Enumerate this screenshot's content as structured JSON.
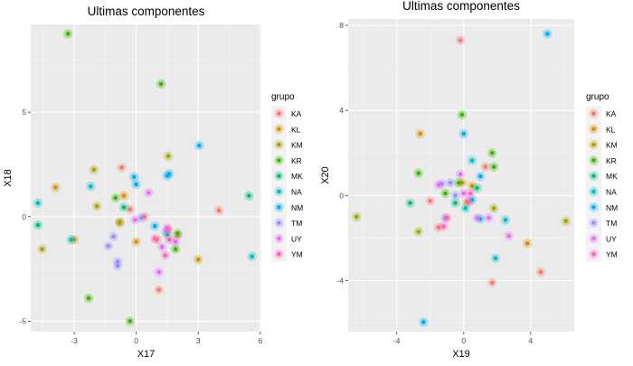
{
  "chart_data": [
    {
      "type": "scatter",
      "title": "Ultimas componentes",
      "xlabel": "X17",
      "ylabel": "X18",
      "xlim": [
        -5.1,
        6.05
      ],
      "ylim": [
        -5.5,
        9.2
      ],
      "xticks": [
        -3,
        0,
        3,
        6
      ],
      "yticks": [
        -5,
        0,
        5
      ],
      "grid": true,
      "legend_title": "grupo",
      "legend_position": "right",
      "series": [
        {
          "name": "KA",
          "color": "#F8766D",
          "points": [
            [
              -0.7,
              2.35
            ],
            [
              -0.3,
              0.35
            ],
            [
              0.4,
              0.0
            ],
            [
              1.0,
              -1.1
            ],
            [
              2.0,
              -0.9
            ],
            [
              4.0,
              0.3
            ],
            [
              1.1,
              -3.5
            ]
          ]
        },
        {
          "name": "KL",
          "color": "#D89000",
          "points": [
            [
              -3.9,
              1.4
            ],
            [
              -0.8,
              -0.3
            ],
            [
              -0.6,
              1.0
            ],
            [
              0.0,
              -1.2
            ],
            [
              3.0,
              -2.05
            ],
            [
              -3.0,
              -1.1
            ]
          ]
        },
        {
          "name": "KM",
          "color": "#A3A500",
          "points": [
            [
              -2.05,
              2.25
            ],
            [
              -1.9,
              0.5
            ],
            [
              1.55,
              2.9
            ],
            [
              -4.55,
              -1.55
            ],
            [
              -0.8,
              -0.25
            ]
          ]
        },
        {
          "name": "KR",
          "color": "#39B600",
          "points": [
            [
              -3.3,
              8.75
            ],
            [
              1.2,
              6.35
            ],
            [
              -2.3,
              -3.9
            ],
            [
              -0.3,
              -5.0
            ],
            [
              -1.0,
              0.9
            ],
            [
              2.0,
              -0.8
            ],
            [
              1.9,
              -1.55
            ]
          ]
        },
        {
          "name": "MK",
          "color": "#00BF7D",
          "points": [
            [
              -4.75,
              -0.4
            ],
            [
              5.45,
              1.0
            ],
            [
              1.5,
              -0.85
            ],
            [
              -0.6,
              0.45
            ]
          ]
        },
        {
          "name": "NA",
          "color": "#00BFC4",
          "points": [
            [
              -4.75,
              0.65
            ],
            [
              -2.2,
              1.45
            ],
            [
              5.6,
              -1.9
            ],
            [
              -3.15,
              -1.1
            ]
          ]
        },
        {
          "name": "NM",
          "color": "#00B0F6",
          "points": [
            [
              -0.1,
              1.9
            ],
            [
              0.0,
              1.55
            ],
            [
              1.5,
              1.95
            ],
            [
              1.6,
              2.05
            ],
            [
              3.05,
              3.4
            ],
            [
              0.9,
              -0.45
            ]
          ]
        },
        {
          "name": "TM",
          "color": "#9590FF",
          "points": [
            [
              -1.35,
              -1.4
            ],
            [
              -1.1,
              -0.95
            ],
            [
              -0.9,
              -2.35
            ],
            [
              -0.9,
              -2.15
            ],
            [
              1.45,
              -0.7
            ],
            [
              0.25,
              -0.05
            ]
          ]
        },
        {
          "name": "UY",
          "color": "#E76BF3",
          "points": [
            [
              0.6,
              1.15
            ],
            [
              -0.05,
              -0.15
            ],
            [
              1.1,
              -2.65
            ],
            [
              1.25,
              -1.45
            ],
            [
              1.9,
              -1.2
            ],
            [
              1.5,
              -0.55
            ]
          ]
        },
        {
          "name": "YM",
          "color": "#FF62BC",
          "points": [
            [
              1.4,
              -1.85
            ],
            [
              1.55,
              -0.6
            ],
            [
              1.6,
              -1.1
            ],
            [
              0.9,
              -1.05
            ]
          ]
        }
      ]
    },
    {
      "type": "scatter",
      "title": "Ultimas componentes",
      "xlabel": "X19",
      "ylabel": "X20",
      "xlim": [
        -6.9,
        6.6
      ],
      "ylim": [
        -6.4,
        8.3
      ],
      "xticks": [
        -4,
        0,
        4
      ],
      "yticks": [
        -4,
        0,
        4,
        8
      ],
      "grid": true,
      "legend_title": "grupo",
      "legend_position": "right",
      "series": [
        {
          "name": "KA",
          "color": "#F8766D",
          "points": [
            [
              -0.2,
              7.3
            ],
            [
              -2.0,
              -0.25
            ],
            [
              -1.5,
              -1.5
            ],
            [
              4.6,
              -3.6
            ],
            [
              1.3,
              1.35
            ],
            [
              1.7,
              -4.1
            ]
          ]
        },
        {
          "name": "KL",
          "color": "#D89000",
          "points": [
            [
              -2.6,
              2.9
            ],
            [
              3.8,
              -2.25
            ],
            [
              0.5,
              0.45
            ],
            [
              0.2,
              -0.3
            ],
            [
              -0.1,
              0.6
            ]
          ]
        },
        {
          "name": "KM",
          "color": "#A3A500",
          "points": [
            [
              -6.4,
              -1.0
            ],
            [
              6.1,
              -1.2
            ],
            [
              -2.7,
              -1.7
            ],
            [
              1.8,
              -0.6
            ]
          ]
        },
        {
          "name": "KR",
          "color": "#39B600",
          "points": [
            [
              -0.1,
              3.8
            ],
            [
              -2.7,
              1.05
            ],
            [
              1.7,
              2.0
            ],
            [
              1.8,
              1.35
            ],
            [
              -0.3,
              0.6
            ],
            [
              -1.1,
              0.1
            ]
          ]
        },
        {
          "name": "MK",
          "color": "#00BF7D",
          "points": [
            [
              -3.2,
              -0.35
            ],
            [
              -0.5,
              -0.35
            ],
            [
              0.8,
              0.35
            ]
          ]
        },
        {
          "name": "NA",
          "color": "#00BFC4",
          "points": [
            [
              0.5,
              1.65
            ],
            [
              2.5,
              -1.15
            ],
            [
              1.9,
              -2.95
            ],
            [
              0.1,
              -0.6
            ]
          ]
        },
        {
          "name": "NM",
          "color": "#00B0F6",
          "points": [
            [
              5.0,
              7.6
            ],
            [
              0.0,
              2.9
            ],
            [
              -2.4,
              -5.95
            ],
            [
              1.0,
              -1.1
            ],
            [
              0.5,
              -0.2
            ],
            [
              1.0,
              0.9
            ]
          ]
        },
        {
          "name": "TM",
          "color": "#9590FF",
          "points": [
            [
              -1.3,
              0.55
            ],
            [
              -0.8,
              0.6
            ],
            [
              -1.1,
              -1.05
            ],
            [
              -0.5,
              0.0
            ]
          ]
        },
        {
          "name": "UY",
          "color": "#E76BF3",
          "points": [
            [
              -0.2,
              1.0
            ],
            [
              -1.5,
              0.5
            ],
            [
              0.8,
              -1.05
            ],
            [
              1.5,
              -1.05
            ],
            [
              2.7,
              -1.9
            ],
            [
              0.0,
              0.1
            ]
          ]
        },
        {
          "name": "YM",
          "color": "#FF62BC",
          "points": [
            [
              -1.2,
              -1.45
            ],
            [
              -1.0,
              -1.05
            ],
            [
              0.4,
              0.1
            ],
            [
              0.3,
              -0.3
            ]
          ]
        }
      ]
    }
  ]
}
